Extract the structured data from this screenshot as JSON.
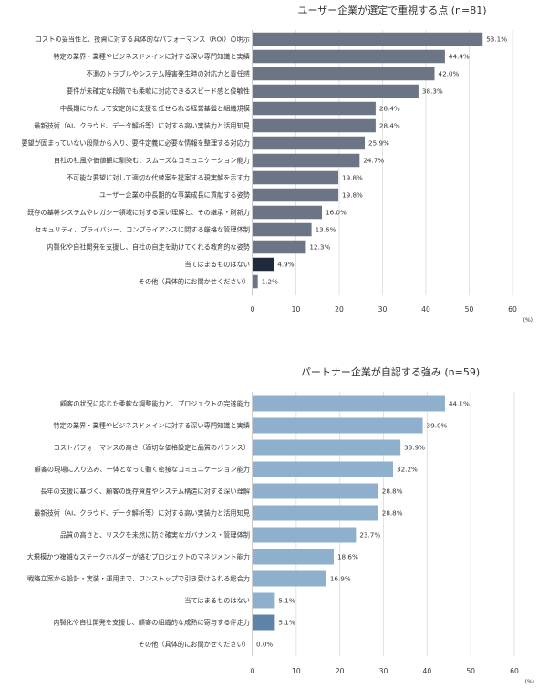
{
  "chart_data": [
    {
      "type": "bar",
      "orientation": "horizontal",
      "title": "ユーザー企業が選定で重視する点 (n=81)",
      "unit_label": "(%)",
      "xlim": [
        0,
        60
      ],
      "xticks": [
        0,
        10,
        20,
        30,
        40,
        50,
        60
      ],
      "grid": true,
      "colors": {
        "default": "#6b7585",
        "highlight": "#1f2b3d"
      },
      "highlight_index": 13,
      "categories": [
        "コストの妥当性と、投資に対する具体的なパフォーマンス（ROI）の明示",
        "特定の業界・業種やビジネスドメインに対する深い専門知識と実績",
        "不測のトラブルやシステム障害発生時の対応力と責任感",
        "要件が未確定な段階でも柔軟に対応できるスピード感と俊敏性",
        "中長期にわたって安定的に支援を任せられる経営基盤と組織規模",
        "最新技術（AI、クラウド、データ解析等）に対する高い実装力と活用知見",
        "要望が固まっていない段階から入り、要件定義に必要な情報を整理する対応力",
        "自社の社風や価値観に馴染む、スムーズなコミュニケーション能力",
        "不可能な要望に対して適切な代替案を提案する現実解を示す力",
        "ユーザー企業の中長期的な事業成長に貢献する姿勢",
        "既存の基幹システムやレガシー領域に対する深い理解と、その継承・刷新力",
        "セキュリティ、プライバシー、コンプライアンスに関する厳格な管理体制",
        "内製化や自社開発を支援し、自社の自走を助けてくれる教育的な姿勢",
        "当てはまるものはない",
        "その他（具体的にお聞かせください）"
      ],
      "values": [
        53.1,
        44.4,
        42.0,
        38.3,
        28.4,
        28.4,
        25.9,
        24.7,
        19.8,
        19.8,
        16.0,
        13.6,
        12.3,
        4.9,
        1.2
      ],
      "value_labels": [
        "53.1%",
        "44.4%",
        "42.0%",
        "38.3%",
        "28.4%",
        "28.4%",
        "25.9%",
        "24.7%",
        "19.8%",
        "19.8%",
        "16.0%",
        "13.6%",
        "12.3%",
        "4.9%",
        "1.2%"
      ]
    },
    {
      "type": "bar",
      "orientation": "horizontal",
      "title": "パートナー企業が自認する強み (n=59)",
      "unit_label": "(%)",
      "xlim": [
        0,
        60
      ],
      "xticks": [
        0,
        10,
        20,
        30,
        40,
        50,
        60
      ],
      "grid": true,
      "colors": {
        "default": "#8fb0cc",
        "highlight": "#5b84a8"
      },
      "highlight_index": 10,
      "categories": [
        "顧客の状況に応じた柔軟な調整能力と、プロジェクトの完遂能力",
        "特定の業界・業種やビジネスドメインに対する深い専門知識と実績",
        "コストパフォーマンスの高さ（適切な価格設定と品質のバランス）",
        "顧客の現場に入り込み、一体となって動く密接なコミュニケーション能力",
        "長年の支援に基づく、顧客の既存資産やシステム構造に対する深い理解",
        "最新技術（AI、クラウド、データ解析等）に対する高い実装力と活用知見",
        "品質の高さと、リスクを未然に防ぐ確実なガバナンス・管理体制",
        "大規模かつ複雑なステークホルダーが絡むプロジェクトのマネジメント能力",
        "戦略立案から設計・実装・運用まで、ワンストップで引き受けられる総合力",
        "当てはまるものはない",
        "内製化や自社開発を支援し、顧客の組織的な成熟に寄与する伴走力",
        "その他（具体的にお聞かせください）"
      ],
      "values": [
        44.1,
        39.0,
        33.9,
        32.2,
        28.8,
        28.8,
        23.7,
        18.6,
        16.9,
        5.1,
        5.1,
        0.0
      ],
      "value_labels": [
        "44.1%",
        "39.0%",
        "33.9%",
        "32.2%",
        "28.8%",
        "28.8%",
        "23.7%",
        "18.6%",
        "16.9%",
        "5.1%",
        "5.1%",
        "0.0%"
      ]
    }
  ]
}
